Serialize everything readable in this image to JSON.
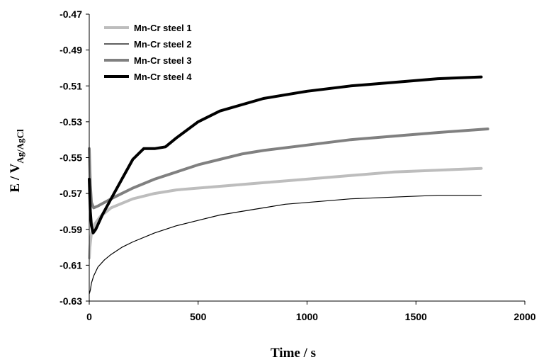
{
  "chart_data": {
    "type": "line",
    "title": "",
    "xlabel": "Time / s",
    "ylabel": {
      "main": "E / V",
      "subscript": "Ag/AgCl"
    },
    "xlim": [
      0,
      2000
    ],
    "ylim": [
      -0.63,
      -0.47
    ],
    "xticks": [
      "0",
      "500",
      "1000",
      "1500",
      "2000"
    ],
    "yticks": [
      "-0.47",
      "-0.49",
      "-0.51",
      "-0.53",
      "-0.55",
      "-0.57",
      "-0.59",
      "-0.61",
      "-0.63"
    ],
    "grid": false,
    "legend_position": "top-left",
    "series": [
      {
        "name": "Mn-Cr steel 1",
        "color": "#bdbdbd",
        "width": "thick",
        "x": [
          0,
          3,
          10,
          25,
          50,
          100,
          200,
          300,
          400,
          500,
          600,
          800,
          1000,
          1200,
          1400,
          1600,
          1800
        ],
        "y": [
          -0.606,
          -0.6,
          -0.592,
          -0.587,
          -0.583,
          -0.578,
          -0.573,
          -0.57,
          -0.568,
          -0.567,
          -0.566,
          -0.564,
          -0.562,
          -0.56,
          -0.558,
          -0.557,
          -0.556
        ]
      },
      {
        "name": "Mn-Cr steel 2",
        "color": "#000000",
        "width": "thin",
        "x": [
          0,
          5,
          10,
          20,
          40,
          70,
          100,
          150,
          200,
          300,
          400,
          500,
          600,
          700,
          800,
          900,
          1000,
          1200,
          1400,
          1600,
          1800
        ],
        "y": [
          -0.626,
          -0.624,
          -0.62,
          -0.616,
          -0.611,
          -0.607,
          -0.604,
          -0.6,
          -0.597,
          -0.592,
          -0.588,
          -0.585,
          -0.582,
          -0.58,
          -0.578,
          -0.576,
          -0.575,
          -0.573,
          -0.572,
          -0.571,
          -0.571
        ]
      },
      {
        "name": "Mn-Cr steel 3",
        "color": "#808080",
        "width": "thick",
        "x": [
          0,
          5,
          10,
          20,
          40,
          70,
          100,
          150,
          200,
          300,
          400,
          500,
          600,
          700,
          800,
          1000,
          1200,
          1400,
          1600,
          1830
        ],
        "y": [
          -0.545,
          -0.565,
          -0.575,
          -0.578,
          -0.577,
          -0.575,
          -0.573,
          -0.57,
          -0.567,
          -0.562,
          -0.558,
          -0.554,
          -0.551,
          -0.548,
          -0.546,
          -0.543,
          -0.54,
          -0.538,
          -0.536,
          -0.534
        ]
      },
      {
        "name": "Mn-Cr steel 4",
        "color": "#000000",
        "width": "thick",
        "x": [
          0,
          5,
          10,
          18,
          30,
          60,
          100,
          150,
          200,
          250,
          300,
          350,
          400,
          500,
          600,
          800,
          1000,
          1200,
          1400,
          1600,
          1800
        ],
        "y": [
          -0.562,
          -0.58,
          -0.588,
          -0.592,
          -0.59,
          -0.582,
          -0.573,
          -0.562,
          -0.551,
          -0.545,
          -0.545,
          -0.544,
          -0.539,
          -0.53,
          -0.524,
          -0.517,
          -0.513,
          -0.51,
          -0.508,
          -0.506,
          -0.505
        ]
      }
    ]
  }
}
